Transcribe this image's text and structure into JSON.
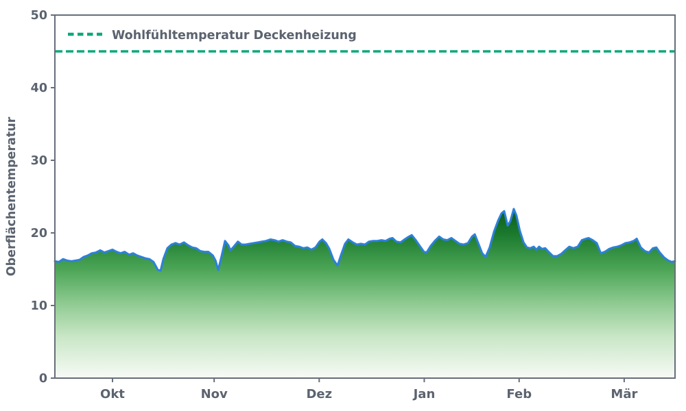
{
  "chart": {
    "colors": {
      "line": "#2e80da",
      "reference": "#0ca87b",
      "axis": "#666e79",
      "text": "#5b636f",
      "gradient": [
        "#0a5c1e",
        "#1b7a2e",
        "#4aa455",
        "#8cc98f",
        "#c8e6c5",
        "#f7fbf6"
      ]
    }
  },
  "chart_data": {
    "type": "area",
    "title": "",
    "xlabel": "",
    "ylabel": "Oberflächentemperatur",
    "ylim": [
      0,
      50
    ],
    "yticks": [
      0,
      10,
      20,
      30,
      40,
      50
    ],
    "x_domain_days": [
      0,
      183
    ],
    "x_unit": "days from mid-September",
    "xticks": [
      {
        "day": 17,
        "label": "Okt"
      },
      {
        "day": 47,
        "label": "Nov"
      },
      {
        "day": 78,
        "label": "Dez"
      },
      {
        "day": 109,
        "label": "Jan"
      },
      {
        "day": 137,
        "label": "Feb"
      },
      {
        "day": 168,
        "label": "Mär"
      }
    ],
    "grid": false,
    "legend_position": "upper-left",
    "reference_line": {
      "value": 45,
      "label": "Wohlfühltemperatur Deckenheizung",
      "style": "dashed",
      "color": "#0ca87b"
    },
    "series": [
      {
        "name": "Oberflächentemperatur",
        "type": "area",
        "line_color": "#2e80da",
        "fill": "green-gradient-to-white",
        "x_days": [
          0,
          1.2,
          2.4,
          3.6,
          4.9,
          6.1,
          7.3,
          8.5,
          9.7,
          10.9,
          12.1,
          13.4,
          14.6,
          15.8,
          17,
          18.2,
          19.4,
          20.6,
          21.9,
          23.1,
          24.3,
          25.5,
          26.7,
          27.9,
          29.1,
          30.4,
          31.2,
          32,
          33.2,
          34.4,
          35.6,
          36.8,
          38.1,
          39.3,
          40.5,
          41.7,
          42.9,
          44.1,
          45.3,
          46.6,
          47.4,
          48.2,
          49.2,
          50.2,
          51.2,
          51.8,
          52.6,
          54,
          55.1,
          56.3,
          57.5,
          58.7,
          59.9,
          61.1,
          62.3,
          63.6,
          64.8,
          66,
          67.2,
          68.4,
          69.6,
          70.9,
          72.1,
          73.3,
          74.5,
          75.7,
          76.9,
          78.1,
          78.9,
          80,
          81,
          82.2,
          83.4,
          84.4,
          85.6,
          86.6,
          87.9,
          89.1,
          90.3,
          91.5,
          92.7,
          93.9,
          95.1,
          96.4,
          97.6,
          98.8,
          99.6,
          100.8,
          102,
          103.2,
          104.5,
          105.3,
          106.5,
          107.7,
          108.9,
          109.7,
          110.9,
          112.1,
          113.4,
          114.6,
          115.8,
          117,
          118.2,
          119.4,
          120.6,
          121.9,
          123.1,
          123.9,
          125.1,
          126.1,
          127.1,
          128.3,
          129.6,
          130.8,
          131.8,
          132.6,
          133.6,
          134.4,
          135.4,
          136.2,
          137.2,
          138.3,
          139.3,
          140.3,
          141.3,
          142.1,
          142.9,
          143.7,
          144.7,
          145.7,
          147,
          148.2,
          149.4,
          150.6,
          151.8,
          153,
          154.3,
          155.5,
          156.7,
          157.5,
          158.7,
          159.9,
          161.1,
          162.3,
          163.6,
          164.8,
          166,
          167.2,
          168.4,
          169.6,
          170.8,
          171.7,
          172.9,
          174.1,
          175.3,
          176.5,
          177.5,
          178.5,
          179.8,
          181,
          182,
          183
        ],
        "values": [
          16.1,
          16,
          16.4,
          16.2,
          16.1,
          16.2,
          16.3,
          16.7,
          16.9,
          17.2,
          17.3,
          17.6,
          17.3,
          17.5,
          17.7,
          17.4,
          17.2,
          17.4,
          17,
          17.2,
          16.9,
          16.7,
          16.5,
          16.4,
          16,
          14.9,
          14.8,
          16.4,
          17.9,
          18.4,
          18.6,
          18.4,
          18.7,
          18.3,
          18,
          17.9,
          17.5,
          17.4,
          17.4,
          16.9,
          16.2,
          14.9,
          16.8,
          18.9,
          18.3,
          17.6,
          18,
          18.8,
          18.4,
          18.4,
          18.5,
          18.6,
          18.7,
          18.8,
          18.9,
          19.1,
          19,
          18.8,
          19,
          18.8,
          18.7,
          18.2,
          18.1,
          17.9,
          18,
          17.7,
          18,
          18.8,
          19.1,
          18.6,
          17.8,
          16.3,
          15.5,
          16.9,
          18.5,
          19.1,
          18.7,
          18.4,
          18.5,
          18.4,
          18.8,
          18.9,
          18.9,
          19,
          18.9,
          19.2,
          19.3,
          18.8,
          18.7,
          19.1,
          19.5,
          19.7,
          19,
          18.2,
          17.4,
          17.3,
          18.2,
          18.9,
          19.5,
          19.1,
          19,
          19.3,
          18.9,
          18.5,
          18.4,
          18.6,
          19.5,
          19.8,
          18.4,
          17.2,
          16.7,
          18,
          20.2,
          21.7,
          22.7,
          23,
          21,
          21.6,
          23.3,
          22.4,
          20.3,
          18.7,
          18,
          17.9,
          18.1,
          17.7,
          18.1,
          17.8,
          17.9,
          17.4,
          16.8,
          16.8,
          17.1,
          17.6,
          18.1,
          17.9,
          18.1,
          19,
          19.2,
          19.3,
          19,
          18.6,
          17.2,
          17.4,
          17.8,
          18,
          18.1,
          18.3,
          18.6,
          18.7,
          18.9,
          19.2,
          18,
          17.5,
          17.3,
          17.9,
          18,
          17.3,
          16.6,
          16.2,
          16,
          16.1
        ]
      }
    ]
  }
}
